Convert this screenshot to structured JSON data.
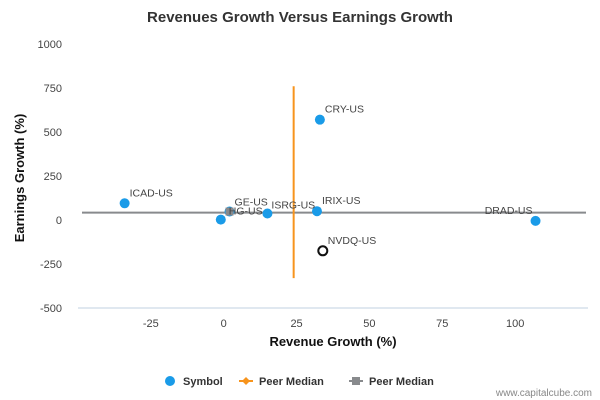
{
  "chart_data": {
    "type": "scatter",
    "title": "Revenues Growth Versus Earnings Growth",
    "xlabel": "Revenue Growth (%)",
    "ylabel": "Earnings Growth (%)",
    "xlim": [
      -50,
      125
    ],
    "ylim": [
      -500,
      1000
    ],
    "x_ticks": [
      -25,
      0,
      25,
      50,
      75,
      100
    ],
    "y_ticks": [
      1000,
      750,
      500,
      250,
      0,
      -250,
      -500
    ],
    "grid": false,
    "points": [
      {
        "label": "CRY-US",
        "x": 33,
        "y": 570,
        "style": "filled"
      },
      {
        "label": "ICAD-US",
        "x": -34,
        "y": 95,
        "style": "filled"
      },
      {
        "label": "GE-US",
        "x": 2,
        "y": 48,
        "style": "filled"
      },
      {
        "label": "HG-US",
        "x": -1,
        "y": 2,
        "style": "filled"
      },
      {
        "label": "ISRG-US",
        "x": 15,
        "y": 37,
        "style": "filled"
      },
      {
        "label": "IRIX-US",
        "x": 32,
        "y": 50,
        "style": "filled"
      },
      {
        "label": "DRAD-US",
        "x": 107,
        "y": -5,
        "style": "filled"
      },
      {
        "label": "NVDQ-US",
        "x": 34,
        "y": -175,
        "style": "hollow"
      }
    ],
    "peer_median_revenue": {
      "x": 24,
      "y_range": [
        -330,
        760
      ]
    },
    "peer_median_earnings": {
      "y": 42
    },
    "legend": {
      "position": "bottom",
      "items": [
        {
          "name": "Symbol",
          "color": "#1a9be8"
        },
        {
          "name": "Peer Median",
          "color": "#f7941d"
        },
        {
          "name": "Peer Median",
          "color": "#888a8d"
        }
      ]
    },
    "colors": {
      "points": "#1a9be8",
      "revenue_median": "#f7941d",
      "earnings_median": "#888a8d"
    }
  },
  "credit": "www.capitalcube.com"
}
